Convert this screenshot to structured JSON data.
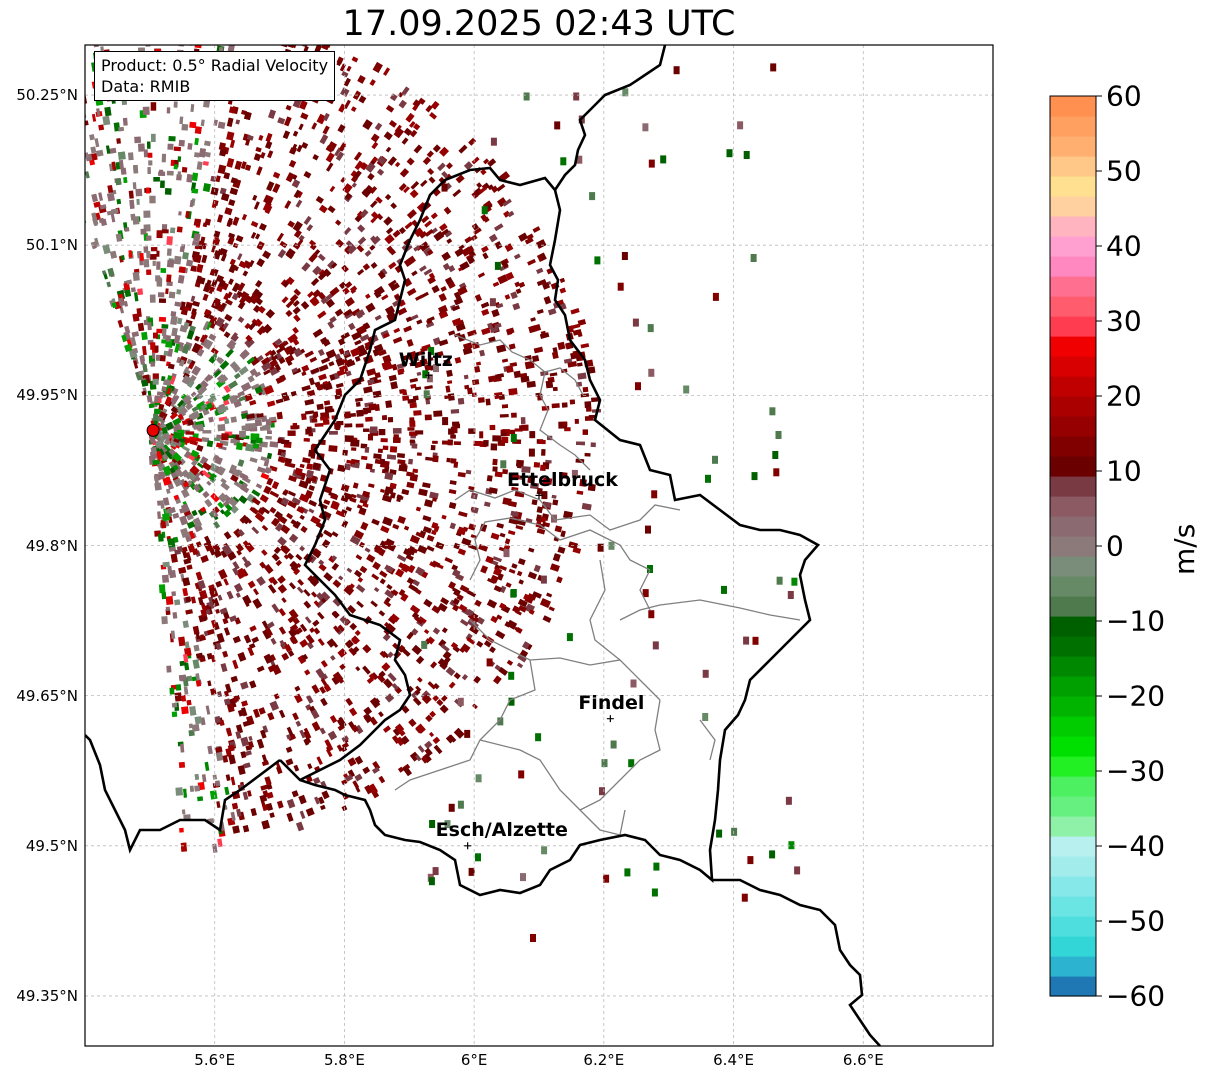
{
  "title": "17.09.2025 02:43 UTC",
  "info": {
    "product": "Product: 0.5° Radial Velocity",
    "source": "Data: RMIB"
  },
  "axes": {
    "lat_labels": [
      "50.25°N",
      "50.1°N",
      "49.95°N",
      "49.8°N",
      "49.65°N",
      "49.5°N",
      "49.35°N"
    ],
    "lon_labels": [
      "5.6°E",
      "5.8°E",
      "6°E",
      "6.2°E",
      "6.4°E",
      "6.6°E"
    ],
    "lon_range": [
      5.4,
      6.8
    ],
    "lat_range": [
      49.3,
      50.3
    ],
    "grid": true
  },
  "places": [
    {
      "name": "Wiltz",
      "lon": 5.93,
      "lat": 49.97
    },
    {
      "name": "Ettelbruck",
      "lon": 6.1,
      "lat": 49.85
    },
    {
      "name": "Findel",
      "lon": 6.21,
      "lat": 49.627
    },
    {
      "name": "Esch/Alzette",
      "lon": 5.99,
      "lat": 49.5
    }
  ],
  "radar_site": {
    "lon": 5.505,
    "lat": 49.915,
    "color": "#e60000"
  },
  "colorbar": {
    "label": "m/s",
    "vmin": -60,
    "vmax": 60,
    "ticks": [
      "60",
      "50",
      "40",
      "30",
      "20",
      "10",
      "0",
      "−10",
      "−20",
      "−30",
      "−40",
      "−50",
      "−60"
    ],
    "tick_values": [
      60,
      50,
      40,
      30,
      20,
      10,
      0,
      -10,
      -20,
      -30,
      -40,
      -50,
      -60
    ],
    "colors": [
      "#1f77b4",
      "#2bb3d0",
      "#33d6d6",
      "#4fdede",
      "#6be4e4",
      "#86e8e8",
      "#a3ecec",
      "#b8f0f0",
      "#8ff0a8",
      "#66f080",
      "#4cf060",
      "#22f022",
      "#00e000",
      "#00cc00",
      "#00b400",
      "#00a000",
      "#008800",
      "#007000",
      "#006000",
      "#4e7a4e",
      "#658a65",
      "#7a8c7a",
      "#8c7a7a",
      "#8c6a72",
      "#8c5a62",
      "#7a3a44",
      "#6a0000",
      "#800000",
      "#960000",
      "#aa0000",
      "#c00000",
      "#d80000",
      "#f00000",
      "#ff3c50",
      "#ff5c6e",
      "#ff7090",
      "#ff88c0",
      "#ffa0d0",
      "#ffb4c0",
      "#ffd0a0",
      "#ffe090",
      "#ffc888",
      "#ffb070",
      "#ffa060",
      "#ff9050"
    ]
  },
  "styles": {
    "border_color": "#000000",
    "canton_color": "#7f7f7f",
    "grid_color": "#bbbbbb"
  }
}
